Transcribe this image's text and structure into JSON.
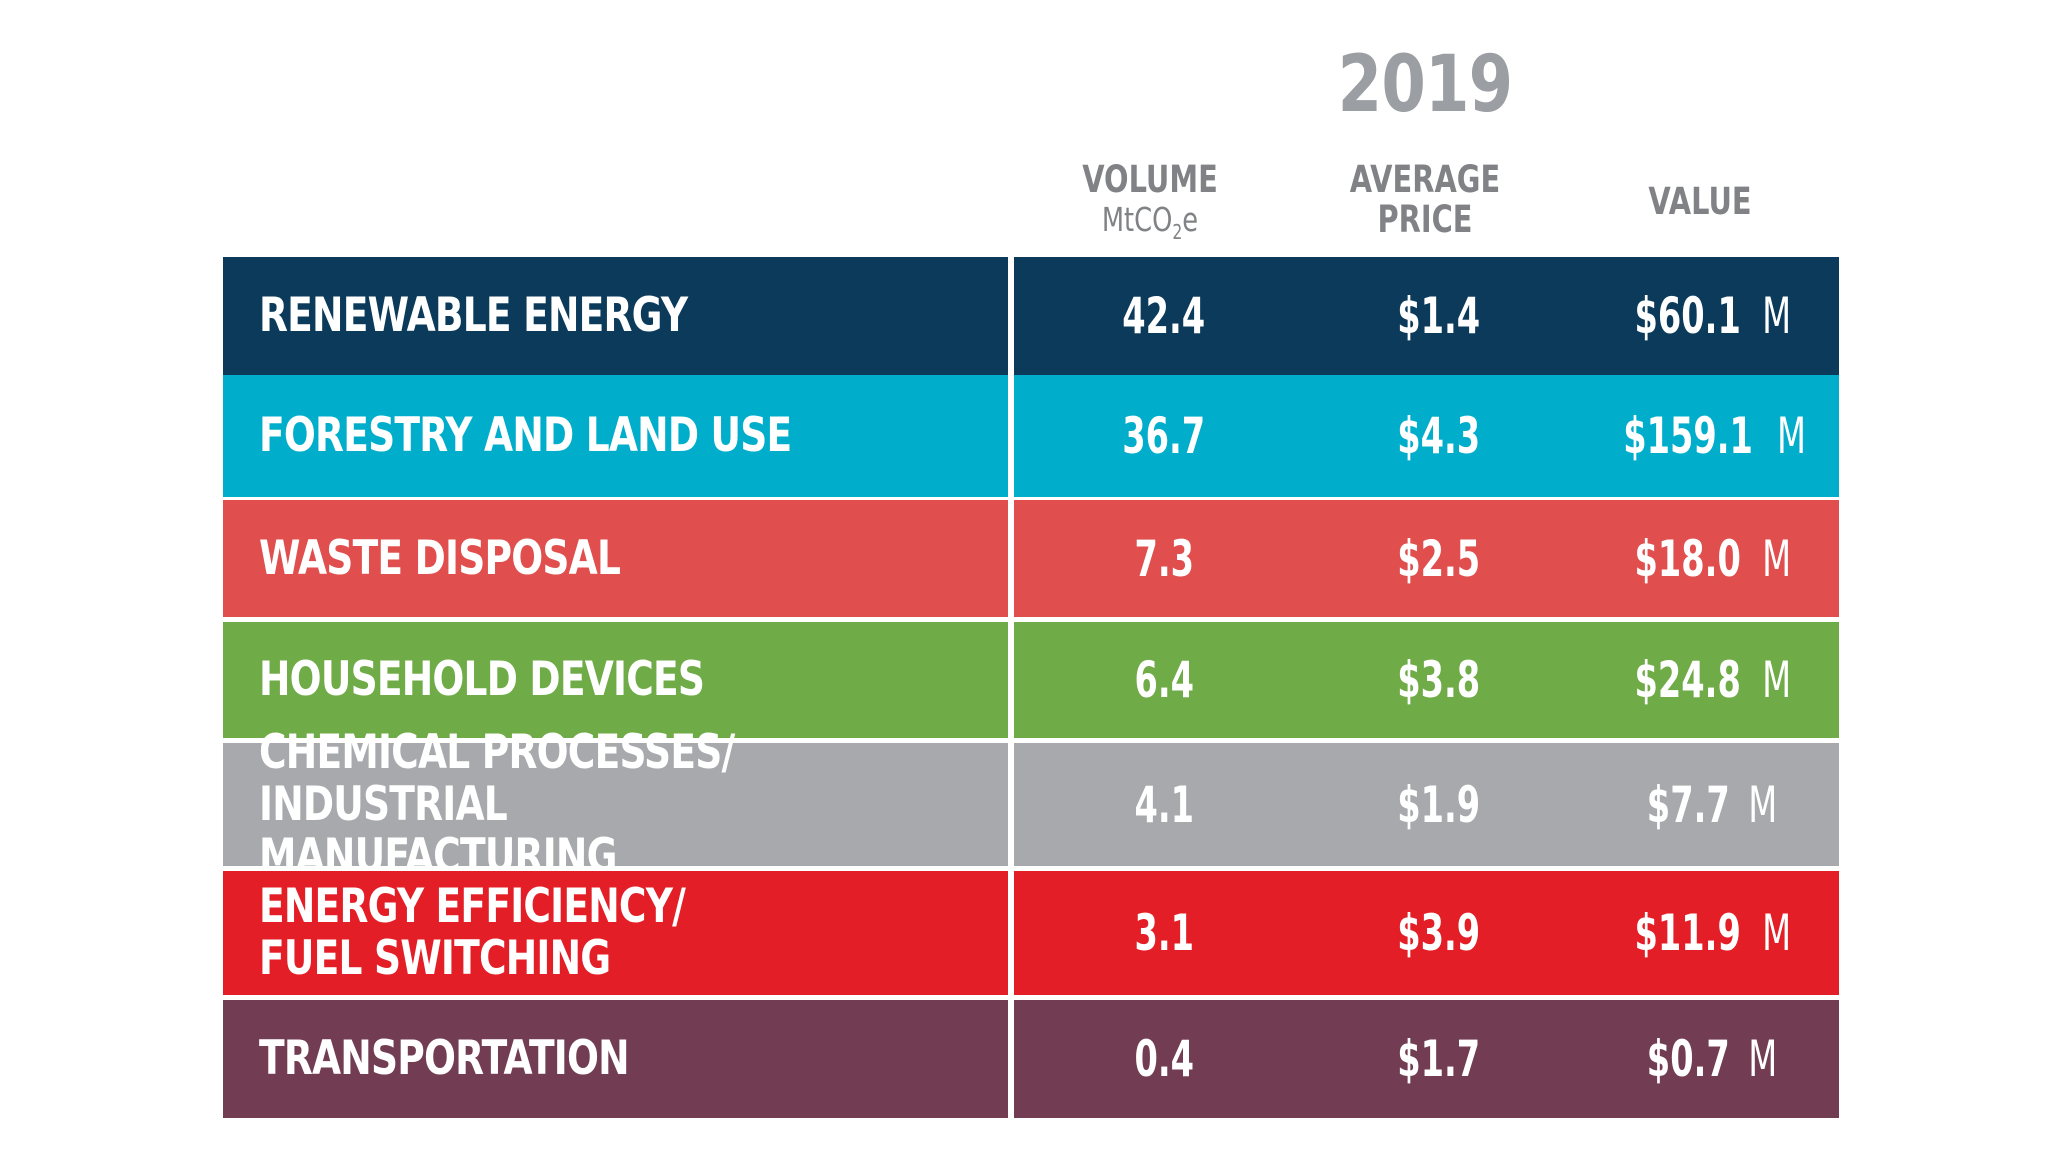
{
  "chart_data": {
    "type": "table",
    "title": "2019",
    "columns": [
      {
        "key": "category",
        "label": ""
      },
      {
        "key": "volume",
        "label": "VOLUME",
        "unit": "MtCO2e"
      },
      {
        "key": "price",
        "label": "AVERAGE PRICE"
      },
      {
        "key": "value",
        "label": "VALUE"
      }
    ],
    "rows": [
      {
        "category": "RENEWABLE ENERGY",
        "volume": "42.4",
        "price": "$1.4",
        "value": "$60.1",
        "value_unit": "M",
        "color": "#0b3a5a"
      },
      {
        "category": "FORESTRY AND LAND USE",
        "volume": "36.7",
        "price": "$4.3",
        "value": "$159.1",
        "value_unit": "M",
        "color": "#00aecb"
      },
      {
        "category": "WASTE DISPOSAL",
        "volume": "7.3",
        "price": "$2.5",
        "value": "$18.0",
        "value_unit": "M",
        "color": "#e04e4d"
      },
      {
        "category": "HOUSEHOLD DEVICES",
        "volume": "6.4",
        "price": "$3.8",
        "value": "$24.8",
        "value_unit": "M",
        "color": "#6fab46"
      },
      {
        "category": "CHEMICAL PROCESSES/\nINDUSTRIAL MANUFACTURING",
        "volume": "4.1",
        "price": "$1.9",
        "value": "$7.7",
        "value_unit": "M",
        "color": "#a7a9ac"
      },
      {
        "category": "ENERGY EFFICIENCY/\nFUEL SWITCHING",
        "volume": "3.1",
        "price": "$3.9",
        "value": "$11.9",
        "value_unit": "M",
        "color": "#e31e26"
      },
      {
        "category": "TRANSPORTATION",
        "volume": "0.4",
        "price": "$1.7",
        "value": "$0.7",
        "value_unit": "M",
        "color": "#723d52"
      }
    ]
  },
  "header": {
    "year": "2019",
    "volume_label": "VOLUME",
    "volume_unit_main": "MtCO",
    "volume_unit_sub": "2",
    "volume_unit_tail": "e",
    "price_label_line1": "AVERAGE",
    "price_label_line2": "PRICE",
    "value_label": "VALUE"
  }
}
